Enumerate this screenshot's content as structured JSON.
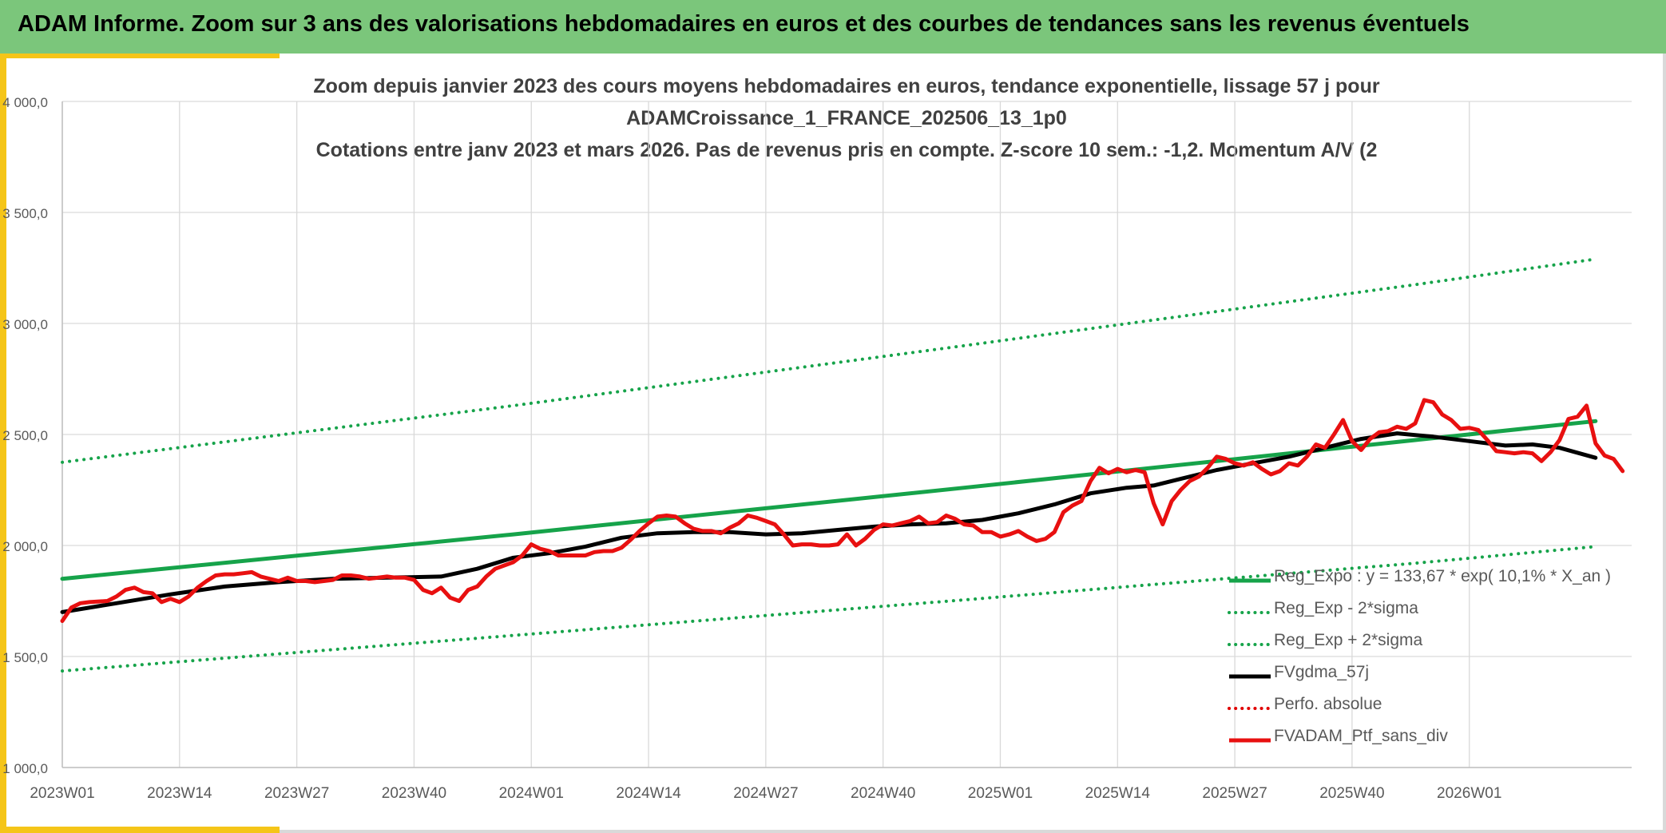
{
  "header": {
    "title": "ADAM Informe. Zoom sur 3 ans des valorisations hebdomadaires en euros et des courbes de tendances sans les revenus éventuels"
  },
  "chart_data": {
    "type": "line",
    "title_lines": [
      "Zoom depuis janvier 2023 des cours moyens hebdomadaires en euros, tendance exponentielle, lissage 57 j pour",
      "ADAMCroissance_1_FRANCE_202506_13_1p0",
      "Cotations entre janv 2023 et mars 2026. Pas de revenus pris en compte. Z-score 10 sem.: -1,2. Momentum A/V (2"
    ],
    "ylim": [
      1000,
      4000
    ],
    "y_ticks": [
      {
        "value": 1000,
        "label": "1 000,0"
      },
      {
        "value": 1500,
        "label": "1 500,0"
      },
      {
        "value": 2000,
        "label": "2 000,0"
      },
      {
        "value": 2500,
        "label": "2 500,0"
      },
      {
        "value": 3000,
        "label": "3 000,0"
      },
      {
        "value": 3500,
        "label": "3 500,0"
      },
      {
        "value": 4000,
        "label": "4 000,0"
      }
    ],
    "x_range": [
      0,
      170
    ],
    "x_ticks": [
      {
        "index": 0,
        "label": "2023W01"
      },
      {
        "index": 13,
        "label": "2023W14"
      },
      {
        "index": 26,
        "label": "2023W27"
      },
      {
        "index": 39,
        "label": "2023W40"
      },
      {
        "index": 52,
        "label": "2024W01"
      },
      {
        "index": 65,
        "label": "2024W14"
      },
      {
        "index": 78,
        "label": "2024W27"
      },
      {
        "index": 91,
        "label": "2024W40"
      },
      {
        "index": 104,
        "label": "2025W01"
      },
      {
        "index": 117,
        "label": "2025W14"
      },
      {
        "index": 130,
        "label": "2025W27"
      },
      {
        "index": 143,
        "label": "2025W40"
      },
      {
        "index": 156,
        "label": "2026W01"
      }
    ],
    "series": [
      {
        "name": "Reg_Expo : y = 133,67 * exp( 10,1% *  X_an )",
        "color": "#16a34a",
        "style": "solid",
        "points": [
          [
            0,
            1850
          ],
          [
            50,
            2050
          ],
          [
            100,
            2260
          ],
          [
            150,
            2475
          ],
          [
            170,
            2560
          ]
        ]
      },
      {
        "name": "Reg_Exp - 2*sigma",
        "color": "#16a34a",
        "style": "dotted",
        "points": [
          [
            0,
            1435
          ],
          [
            50,
            1595
          ],
          [
            100,
            1755
          ],
          [
            150,
            1920
          ],
          [
            170,
            1995
          ]
        ]
      },
      {
        "name": "Reg_Exp + 2*sigma",
        "color": "#16a34a",
        "style": "dotted",
        "points": [
          [
            0,
            2375
          ],
          [
            50,
            2630
          ],
          [
            100,
            2900
          ],
          [
            150,
            3175
          ],
          [
            170,
            3290
          ]
        ]
      },
      {
        "name": "FVgdma_57j",
        "color": "#000000",
        "style": "solid",
        "points": [
          [
            0,
            1700
          ],
          [
            6,
            1740
          ],
          [
            12,
            1780
          ],
          [
            18,
            1815
          ],
          [
            24,
            1835
          ],
          [
            30,
            1850
          ],
          [
            36,
            1855
          ],
          [
            42,
            1860
          ],
          [
            46,
            1895
          ],
          [
            50,
            1945
          ],
          [
            54,
            1965
          ],
          [
            58,
            1995
          ],
          [
            62,
            2035
          ],
          [
            66,
            2055
          ],
          [
            70,
            2060
          ],
          [
            74,
            2060
          ],
          [
            78,
            2050
          ],
          [
            82,
            2055
          ],
          [
            86,
            2070
          ],
          [
            90,
            2085
          ],
          [
            94,
            2095
          ],
          [
            98,
            2100
          ],
          [
            102,
            2115
          ],
          [
            106,
            2145
          ],
          [
            110,
            2185
          ],
          [
            114,
            2235
          ],
          [
            118,
            2260
          ],
          [
            121,
            2270
          ],
          [
            124,
            2300
          ],
          [
            128,
            2340
          ],
          [
            132,
            2370
          ],
          [
            136,
            2400
          ],
          [
            140,
            2440
          ],
          [
            144,
            2480
          ],
          [
            148,
            2505
          ],
          [
            152,
            2490
          ],
          [
            156,
            2470
          ],
          [
            160,
            2450
          ],
          [
            163,
            2455
          ],
          [
            166,
            2440
          ],
          [
            170,
            2395
          ]
        ]
      },
      {
        "name": "Perfo. absolue",
        "color": "#e00000",
        "style": "dotted",
        "points": []
      },
      {
        "name": "FVADAM_Ptf_sans_div",
        "color": "#e81010",
        "style": "solid",
        "points": [
          [
            0,
            1660
          ],
          [
            1,
            1720
          ],
          [
            2,
            1740
          ],
          [
            3,
            1745
          ],
          [
            5,
            1750
          ],
          [
            6,
            1770
          ],
          [
            7,
            1800
          ],
          [
            8,
            1810
          ],
          [
            9,
            1790
          ],
          [
            10,
            1785
          ],
          [
            11,
            1745
          ],
          [
            12,
            1760
          ],
          [
            13,
            1745
          ],
          [
            14,
            1770
          ],
          [
            15,
            1810
          ],
          [
            16,
            1840
          ],
          [
            17,
            1865
          ],
          [
            18,
            1870
          ],
          [
            19,
            1870
          ],
          [
            20,
            1875
          ],
          [
            21,
            1880
          ],
          [
            22,
            1860
          ],
          [
            24,
            1840
          ],
          [
            25,
            1855
          ],
          [
            26,
            1840
          ],
          [
            27,
            1840
          ],
          [
            28,
            1835
          ],
          [
            30,
            1845
          ],
          [
            31,
            1865
          ],
          [
            32,
            1865
          ],
          [
            33,
            1860
          ],
          [
            34,
            1850
          ],
          [
            36,
            1860
          ],
          [
            37,
            1855
          ],
          [
            38,
            1855
          ],
          [
            39,
            1845
          ],
          [
            40,
            1800
          ],
          [
            41,
            1785
          ],
          [
            42,
            1810
          ],
          [
            43,
            1765
          ],
          [
            44,
            1750
          ],
          [
            45,
            1800
          ],
          [
            46,
            1815
          ],
          [
            47,
            1860
          ],
          [
            48,
            1895
          ],
          [
            49,
            1910
          ],
          [
            50,
            1925
          ],
          [
            51,
            1955
          ],
          [
            52,
            2005
          ],
          [
            53,
            1985
          ],
          [
            54,
            1975
          ],
          [
            55,
            1955
          ],
          [
            56,
            1955
          ],
          [
            57,
            1955
          ],
          [
            58,
            1955
          ],
          [
            59,
            1970
          ],
          [
            60,
            1975
          ],
          [
            61,
            1975
          ],
          [
            62,
            1990
          ],
          [
            63,
            2025
          ],
          [
            64,
            2065
          ],
          [
            65,
            2100
          ],
          [
            66,
            2130
          ],
          [
            67,
            2135
          ],
          [
            68,
            2130
          ],
          [
            69,
            2100
          ],
          [
            70,
            2075
          ],
          [
            71,
            2065
          ],
          [
            72,
            2065
          ],
          [
            73,
            2055
          ],
          [
            74,
            2080
          ],
          [
            75,
            2100
          ],
          [
            76,
            2135
          ],
          [
            77,
            2125
          ],
          [
            78,
            2110
          ],
          [
            79,
            2095
          ],
          [
            80,
            2050
          ],
          [
            81,
            2000
          ],
          [
            82,
            2005
          ],
          [
            83,
            2005
          ],
          [
            84,
            2000
          ],
          [
            85,
            2000
          ],
          [
            86,
            2005
          ],
          [
            87,
            2050
          ],
          [
            88,
            2000
          ],
          [
            89,
            2030
          ],
          [
            90,
            2070
          ],
          [
            91,
            2095
          ],
          [
            92,
            2090
          ],
          [
            93,
            2100
          ],
          [
            94,
            2110
          ],
          [
            95,
            2130
          ],
          [
            96,
            2100
          ],
          [
            97,
            2105
          ],
          [
            98,
            2135
          ],
          [
            99,
            2120
          ],
          [
            100,
            2095
          ],
          [
            101,
            2090
          ],
          [
            102,
            2060
          ],
          [
            103,
            2060
          ],
          [
            104,
            2040
          ],
          [
            105,
            2050
          ],
          [
            106,
            2065
          ],
          [
            107,
            2040
          ],
          [
            108,
            2020
          ],
          [
            109,
            2030
          ],
          [
            110,
            2060
          ],
          [
            111,
            2150
          ],
          [
            112,
            2180
          ],
          [
            113,
            2200
          ],
          [
            114,
            2290
          ],
          [
            115,
            2350
          ],
          [
            116,
            2325
          ],
          [
            117,
            2345
          ],
          [
            118,
            2330
          ],
          [
            119,
            2340
          ],
          [
            120,
            2330
          ],
          [
            121,
            2190
          ],
          [
            122,
            2095
          ],
          [
            123,
            2200
          ],
          [
            124,
            2250
          ],
          [
            125,
            2290
          ],
          [
            126,
            2310
          ],
          [
            127,
            2350
          ],
          [
            128,
            2400
          ],
          [
            129,
            2390
          ],
          [
            130,
            2370
          ],
          [
            131,
            2360
          ],
          [
            132,
            2375
          ],
          [
            133,
            2345
          ],
          [
            134,
            2320
          ],
          [
            135,
            2335
          ],
          [
            136,
            2370
          ],
          [
            137,
            2360
          ],
          [
            138,
            2400
          ],
          [
            139,
            2455
          ],
          [
            140,
            2440
          ],
          [
            141,
            2500
          ],
          [
            142,
            2565
          ],
          [
            143,
            2470
          ],
          [
            144,
            2430
          ],
          [
            145,
            2480
          ],
          [
            146,
            2510
          ],
          [
            147,
            2515
          ],
          [
            148,
            2535
          ],
          [
            149,
            2525
          ],
          [
            150,
            2550
          ],
          [
            151,
            2655
          ],
          [
            152,
            2645
          ],
          [
            153,
            2590
          ],
          [
            154,
            2565
          ],
          [
            155,
            2525
          ],
          [
            156,
            2530
          ],
          [
            157,
            2520
          ],
          [
            158,
            2475
          ],
          [
            159,
            2425
          ],
          [
            160,
            2420
          ],
          [
            161,
            2415
          ],
          [
            162,
            2420
          ],
          [
            163,
            2415
          ],
          [
            164,
            2380
          ],
          [
            165,
            2420
          ],
          [
            166,
            2475
          ],
          [
            167,
            2570
          ],
          [
            168,
            2580
          ],
          [
            169,
            2630
          ],
          [
            170,
            2460
          ],
          [
            171,
            2405
          ],
          [
            172,
            2390
          ],
          [
            173,
            2335
          ]
        ]
      }
    ],
    "legend_position": "bottom-right",
    "grid": true
  }
}
